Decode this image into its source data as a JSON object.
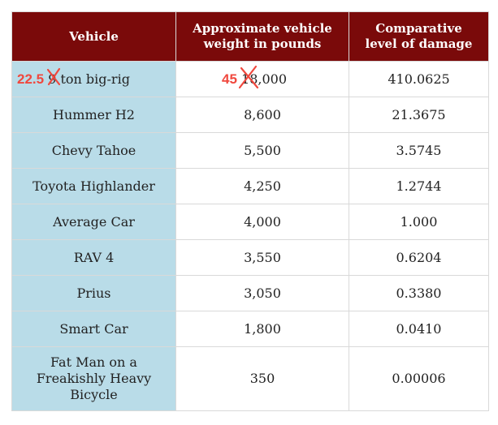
{
  "columns": [
    "Vehicle",
    "Approximate vehicle weight in pounds",
    "Comparative level of damage"
  ],
  "header_lines": [
    [
      "Vehicle"
    ],
    [
      "Approximate vehicle",
      "weight in pounds"
    ],
    [
      "Comparative",
      "level of damage"
    ]
  ],
  "annotation": {
    "vehicle_correction": "22.5",
    "vehicle_struck": "9",
    "vehicle_rest": " ton big-rig",
    "weight_correction": "45",
    "weight_struck": "18",
    "weight_rest": ",000"
  },
  "rows": [
    {
      "weight": "18,000",
      "damage": "410.0625"
    },
    {
      "vehicle": "Hummer H2",
      "weight": "8,600",
      "damage": "21.3675"
    },
    {
      "vehicle": "Chevy Tahoe",
      "weight": "5,500",
      "damage": "3.5745"
    },
    {
      "vehicle": "Toyota Highlander",
      "weight": "4,250",
      "damage": "1.2744"
    },
    {
      "vehicle": "Average Car",
      "weight": "4,000",
      "damage": "1.000"
    },
    {
      "vehicle": "RAV 4",
      "weight": "3,550",
      "damage": "0.6204"
    },
    {
      "vehicle": "Prius",
      "weight": "3,050",
      "damage": "0.3380"
    },
    {
      "vehicle": "Smart Car",
      "weight": "1,800",
      "damage": "0.0410"
    },
    {
      "vehicle_lines": [
        "Fat Man on a",
        "Freakishly Heavy",
        "Bicycle"
      ],
      "weight": "350",
      "damage": "0.00006"
    }
  ],
  "colors": {
    "header_bg": "#7a0a0a",
    "first_col_bg": "#b9dce8",
    "annotation": "#f0483e"
  }
}
